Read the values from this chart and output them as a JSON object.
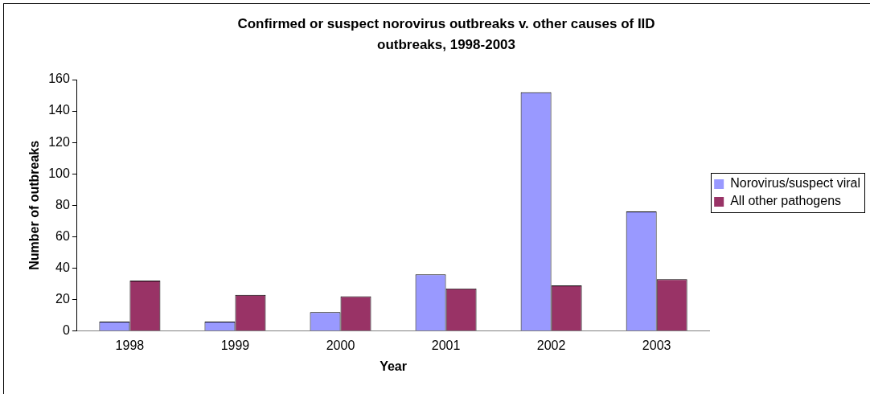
{
  "chart_data": {
    "type": "bar",
    "title": "Confirmed or suspect norovirus outbreaks v. other causes of IID outbreaks, 1998-2003",
    "xlabel": "Year",
    "ylabel": "Number of outbreaks",
    "categories": [
      "1998",
      "1999",
      "2000",
      "2001",
      "2002",
      "2003"
    ],
    "series": [
      {
        "name": "Norovirus/suspect viral",
        "color": "#9999ff",
        "values": [
          6,
          6,
          12,
          36,
          152,
          76
        ]
      },
      {
        "name": "All other pathogens",
        "color": "#993366",
        "values": [
          32,
          23,
          22,
          27,
          29,
          33
        ]
      }
    ],
    "ylim": [
      0,
      160
    ],
    "yticks": [
      0,
      20,
      40,
      60,
      80,
      100,
      120,
      140,
      160
    ],
    "grid": false,
    "legend": "right"
  }
}
